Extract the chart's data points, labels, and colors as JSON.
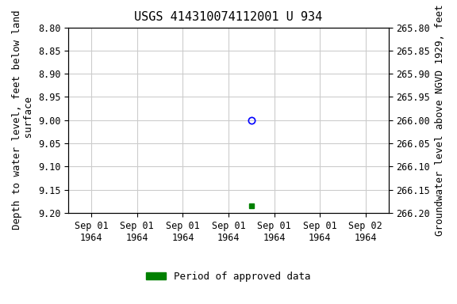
{
  "title": "USGS 414310074112001 U 934",
  "ylabel_left": "Depth to water level, feet below land\n surface",
  "ylabel_right": "Groundwater level above NGVD 1929, feet",
  "ylim_left": [
    8.8,
    9.2
  ],
  "ylim_right": [
    266.2,
    265.8
  ],
  "yticks_left": [
    8.8,
    8.85,
    8.9,
    8.95,
    9.0,
    9.05,
    9.1,
    9.15,
    9.2
  ],
  "yticks_right": [
    266.2,
    266.15,
    266.1,
    266.05,
    266.0,
    265.95,
    265.9,
    265.85,
    265.8
  ],
  "data_point_open": {
    "x": 3.5,
    "value": 9.0,
    "color": "blue",
    "marker": "o",
    "filled": false
  },
  "data_point_filled": {
    "x": 3.5,
    "value": 9.185,
    "color": "green",
    "marker": "s",
    "filled": true
  },
  "x_num_ticks": 7,
  "xlim": [
    -0.5,
    6.5
  ],
  "xtick_labels": [
    "Sep 01\n1964",
    "Sep 01\n1964",
    "Sep 01\n1964",
    "Sep 01\n1964",
    "Sep 01\n1964",
    "Sep 01\n1964",
    "Sep 02\n1964"
  ],
  "legend_label": "Period of approved data",
  "legend_color": "#008000",
  "background_color": "#ffffff",
  "grid_color": "#cccccc",
  "title_fontsize": 11,
  "label_fontsize": 9,
  "tick_fontsize": 8.5
}
